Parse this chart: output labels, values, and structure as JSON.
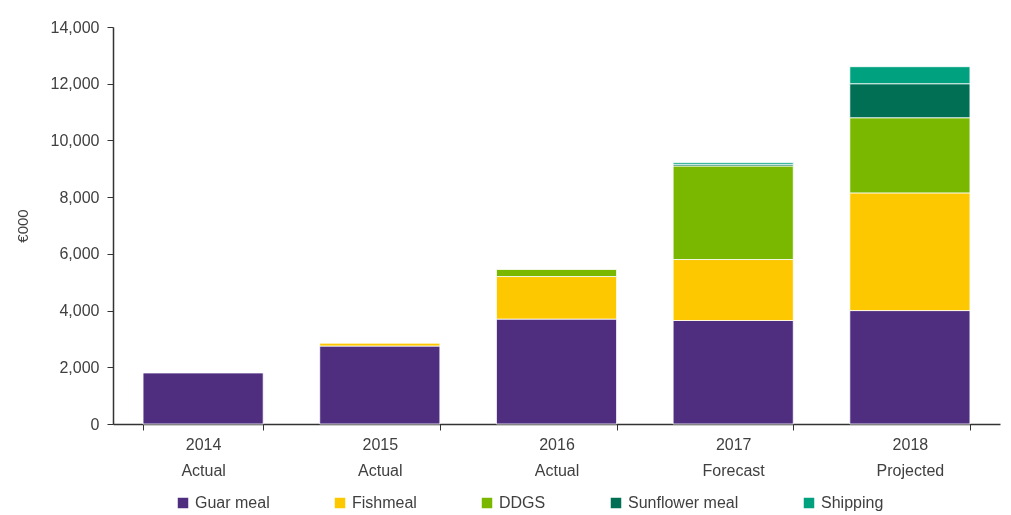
{
  "chart_data": {
    "type": "bar",
    "stacked": true,
    "categories": [
      "2014\nActual",
      "2015\nActual",
      "2016\nActual",
      "2017\nForecast",
      "2018\nProjected"
    ],
    "ylabel": "€000",
    "ylim": [
      0,
      14000
    ],
    "yticks": [
      0,
      {
        "value": 2000,
        "label": "2,000"
      },
      {
        "value": 4000,
        "label": "4,000"
      },
      {
        "value": 6000,
        "label": "6,000"
      },
      {
        "value": 8000,
        "label": "8,000"
      },
      {
        "value": 10000,
        "label": "10,000"
      },
      {
        "value": 12000,
        "label": "12,000"
      },
      {
        "value": 14000,
        "label": "14,000"
      }
    ],
    "grid": false,
    "legend": "bottom",
    "series": [
      {
        "name": "Guar meal",
        "color": "#4f2d7f",
        "values": [
          1800,
          2750,
          3700,
          3650,
          4000
        ]
      },
      {
        "name": "Fishmeal",
        "color": "#fdc800",
        "values": [
          null,
          100,
          1500,
          2150,
          4150
        ]
      },
      {
        "name": "DDGS",
        "color": "#7ab800",
        "values": [
          null,
          null,
          250,
          3300,
          2650
        ]
      },
      {
        "name": "Sunflower meal",
        "color": "#006f54",
        "values": [
          null,
          null,
          null,
          60,
          1200
        ]
      },
      {
        "name": "Shipping",
        "color": "#00a17e",
        "values": [
          null,
          null,
          null,
          60,
          600
        ]
      }
    ]
  }
}
